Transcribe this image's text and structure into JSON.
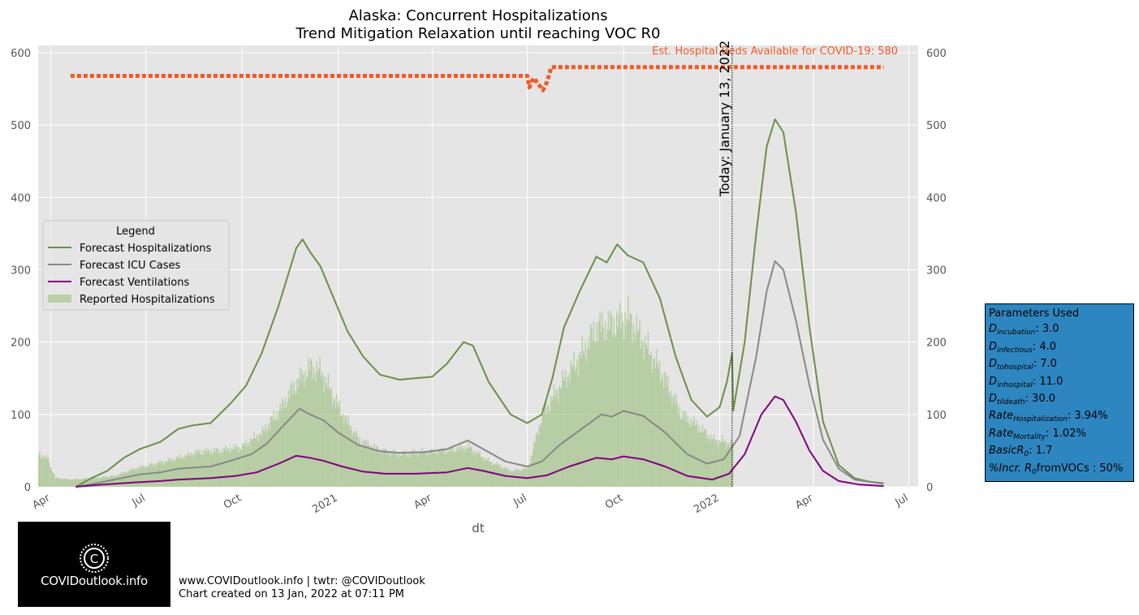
{
  "title_line1": "Alaska: Concurrent Hospitalizations",
  "title_line2": "Trend Mitigation Relaxation until reaching VOC R0",
  "chart_data": {
    "type": "line",
    "title": "Alaska: Concurrent Hospitalizations / Trend Mitigation Relaxation until reaching VOC R0",
    "xlabel": "dt",
    "ylabel": "",
    "ylim": [
      0,
      610
    ],
    "xlim": [
      "2020-03-20",
      "2022-07-10"
    ],
    "x_ticks": [
      {
        "date": "2020-04-01",
        "label": "Apr"
      },
      {
        "date": "2020-07-01",
        "label": "Jul"
      },
      {
        "date": "2020-10-01",
        "label": "Oct"
      },
      {
        "date": "2021-01-01",
        "label": "2021"
      },
      {
        "date": "2021-04-01",
        "label": "Apr"
      },
      {
        "date": "2021-07-01",
        "label": "Jul"
      },
      {
        "date": "2021-10-01",
        "label": "Oct"
      },
      {
        "date": "2022-01-01",
        "label": "2022"
      },
      {
        "date": "2022-04-01",
        "label": "Apr"
      },
      {
        "date": "2022-07-01",
        "label": "Jul"
      }
    ],
    "y_ticks": [
      0,
      100,
      200,
      300,
      400,
      500,
      600
    ],
    "grid": true,
    "legend_title": "Legend",
    "legend_position": "center-left",
    "series": [
      {
        "name": "Forecast Hospitalizations",
        "type": "line",
        "color": "#6a8f4a",
        "points": [
          [
            "2020-04-25",
            0
          ],
          [
            "2020-05-10",
            12
          ],
          [
            "2020-05-25",
            22
          ],
          [
            "2020-06-10",
            40
          ],
          [
            "2020-06-25",
            52
          ],
          [
            "2020-07-15",
            62
          ],
          [
            "2020-08-01",
            80
          ],
          [
            "2020-08-15",
            85
          ],
          [
            "2020-09-01",
            88
          ],
          [
            "2020-09-20",
            115
          ],
          [
            "2020-10-05",
            140
          ],
          [
            "2020-10-20",
            185
          ],
          [
            "2020-11-05",
            250
          ],
          [
            "2020-11-22",
            330
          ],
          [
            "2020-11-28",
            342
          ],
          [
            "2020-12-05",
            325
          ],
          [
            "2020-12-15",
            305
          ],
          [
            "2020-12-28",
            260
          ],
          [
            "2021-01-10",
            215
          ],
          [
            "2021-01-25",
            180
          ],
          [
            "2021-02-10",
            155
          ],
          [
            "2021-03-01",
            148
          ],
          [
            "2021-03-15",
            150
          ],
          [
            "2021-04-01",
            152
          ],
          [
            "2021-04-15",
            170
          ],
          [
            "2021-05-01",
            200
          ],
          [
            "2021-05-10",
            195
          ],
          [
            "2021-05-25",
            145
          ],
          [
            "2021-06-15",
            100
          ],
          [
            "2021-07-01",
            88
          ],
          [
            "2021-07-15",
            100
          ],
          [
            "2021-07-25",
            150
          ],
          [
            "2021-08-05",
            220
          ],
          [
            "2021-08-20",
            270
          ],
          [
            "2021-09-05",
            318
          ],
          [
            "2021-09-15",
            310
          ],
          [
            "2021-09-25",
            335
          ],
          [
            "2021-10-05",
            320
          ],
          [
            "2021-10-20",
            310
          ],
          [
            "2021-11-05",
            260
          ],
          [
            "2021-11-20",
            180
          ],
          [
            "2021-12-05",
            120
          ],
          [
            "2021-12-20",
            97
          ],
          [
            "2022-01-01",
            110
          ],
          [
            "2022-01-08",
            145
          ],
          [
            "2022-01-13",
            185
          ],
          [
            "2022-01-14",
            105
          ],
          [
            "2022-01-25",
            200
          ],
          [
            "2022-02-05",
            350
          ],
          [
            "2022-02-15",
            470
          ],
          [
            "2022-02-23",
            508
          ],
          [
            "2022-03-03",
            490
          ],
          [
            "2022-03-15",
            380
          ],
          [
            "2022-03-28",
            220
          ],
          [
            "2022-04-10",
            90
          ],
          [
            "2022-04-25",
            30
          ],
          [
            "2022-05-10",
            12
          ],
          [
            "2022-05-25",
            7
          ],
          [
            "2022-06-07",
            5
          ]
        ]
      },
      {
        "name": "Forecast ICU Cases",
        "type": "line",
        "color": "#888888",
        "points": [
          [
            "2020-04-25",
            0
          ],
          [
            "2020-05-15",
            5
          ],
          [
            "2020-06-01",
            10
          ],
          [
            "2020-06-25",
            17
          ],
          [
            "2020-07-15",
            20
          ],
          [
            "2020-08-01",
            25
          ],
          [
            "2020-09-01",
            28
          ],
          [
            "2020-09-20",
            36
          ],
          [
            "2020-10-10",
            45
          ],
          [
            "2020-10-25",
            60
          ],
          [
            "2020-11-10",
            85
          ],
          [
            "2020-11-25",
            108
          ],
          [
            "2020-12-05",
            100
          ],
          [
            "2020-12-18",
            92
          ],
          [
            "2021-01-01",
            75
          ],
          [
            "2021-01-20",
            58
          ],
          [
            "2021-02-10",
            49
          ],
          [
            "2021-03-01",
            47
          ],
          [
            "2021-03-25",
            48
          ],
          [
            "2021-04-15",
            52
          ],
          [
            "2021-05-05",
            64
          ],
          [
            "2021-05-20",
            52
          ],
          [
            "2021-06-10",
            35
          ],
          [
            "2021-07-01",
            28
          ],
          [
            "2021-07-15",
            35
          ],
          [
            "2021-08-01",
            58
          ],
          [
            "2021-08-20",
            78
          ],
          [
            "2021-09-10",
            100
          ],
          [
            "2021-09-20",
            97
          ],
          [
            "2021-10-01",
            105
          ],
          [
            "2021-10-20",
            98
          ],
          [
            "2021-11-10",
            75
          ],
          [
            "2021-12-01",
            45
          ],
          [
            "2021-12-20",
            32
          ],
          [
            "2022-01-05",
            38
          ],
          [
            "2022-01-20",
            70
          ],
          [
            "2022-02-05",
            180
          ],
          [
            "2022-02-15",
            270
          ],
          [
            "2022-02-23",
            312
          ],
          [
            "2022-03-03",
            300
          ],
          [
            "2022-03-15",
            230
          ],
          [
            "2022-03-28",
            140
          ],
          [
            "2022-04-10",
            65
          ],
          [
            "2022-04-25",
            25
          ],
          [
            "2022-05-10",
            10
          ],
          [
            "2022-06-07",
            4
          ]
        ]
      },
      {
        "name": "Forecast Ventilations",
        "type": "line",
        "color": "#800080",
        "points": [
          [
            "2020-04-25",
            0
          ],
          [
            "2020-05-20",
            3
          ],
          [
            "2020-06-20",
            6
          ],
          [
            "2020-07-15",
            8
          ],
          [
            "2020-08-01",
            10
          ],
          [
            "2020-09-01",
            12
          ],
          [
            "2020-09-25",
            15
          ],
          [
            "2020-10-15",
            20
          ],
          [
            "2020-11-05",
            32
          ],
          [
            "2020-11-22",
            43
          ],
          [
            "2020-12-05",
            40
          ],
          [
            "2020-12-18",
            36
          ],
          [
            "2021-01-05",
            28
          ],
          [
            "2021-01-25",
            21
          ],
          [
            "2021-02-15",
            18
          ],
          [
            "2021-03-15",
            18
          ],
          [
            "2021-04-15",
            20
          ],
          [
            "2021-05-05",
            26
          ],
          [
            "2021-05-20",
            22
          ],
          [
            "2021-06-10",
            15
          ],
          [
            "2021-07-01",
            12
          ],
          [
            "2021-07-20",
            16
          ],
          [
            "2021-08-10",
            28
          ],
          [
            "2021-09-05",
            40
          ],
          [
            "2021-09-20",
            38
          ],
          [
            "2021-10-01",
            42
          ],
          [
            "2021-10-20",
            38
          ],
          [
            "2021-11-10",
            28
          ],
          [
            "2021-12-01",
            15
          ],
          [
            "2021-12-25",
            10
          ],
          [
            "2022-01-10",
            18
          ],
          [
            "2022-01-25",
            45
          ],
          [
            "2022-02-10",
            100
          ],
          [
            "2022-02-23",
            125
          ],
          [
            "2022-03-03",
            120
          ],
          [
            "2022-03-15",
            90
          ],
          [
            "2022-03-28",
            50
          ],
          [
            "2022-04-10",
            22
          ],
          [
            "2022-04-25",
            8
          ],
          [
            "2022-05-15",
            3
          ],
          [
            "2022-06-07",
            1
          ]
        ]
      },
      {
        "name": "Reported Hospitalizations",
        "type": "bar",
        "color": "#a5c388",
        "points": [
          [
            "2020-03-20",
            45
          ],
          [
            "2020-03-28",
            40
          ],
          [
            "2020-04-05",
            12
          ],
          [
            "2020-04-20",
            10
          ],
          [
            "2020-05-10",
            12
          ],
          [
            "2020-06-01",
            15
          ],
          [
            "2020-06-20",
            25
          ],
          [
            "2020-07-10",
            32
          ],
          [
            "2020-08-01",
            40
          ],
          [
            "2020-08-20",
            48
          ],
          [
            "2020-09-10",
            50
          ],
          [
            "2020-09-30",
            55
          ],
          [
            "2020-10-20",
            75
          ],
          [
            "2020-11-05",
            105
          ],
          [
            "2020-11-20",
            140
          ],
          [
            "2020-12-05",
            165
          ],
          [
            "2020-12-15",
            160
          ],
          [
            "2020-12-25",
            130
          ],
          [
            "2021-01-05",
            100
          ],
          [
            "2021-01-20",
            65
          ],
          [
            "2021-02-10",
            50
          ],
          [
            "2021-03-01",
            45
          ],
          [
            "2021-03-25",
            48
          ],
          [
            "2021-04-15",
            50
          ],
          [
            "2021-05-05",
            55
          ],
          [
            "2021-05-25",
            35
          ],
          [
            "2021-06-15",
            22
          ],
          [
            "2021-07-01",
            25
          ],
          [
            "2021-07-15",
            100
          ],
          [
            "2021-08-01",
            140
          ],
          [
            "2021-08-20",
            180
          ],
          [
            "2021-09-05",
            220
          ],
          [
            "2021-09-20",
            225
          ],
          [
            "2021-10-05",
            235
          ],
          [
            "2021-10-20",
            200
          ],
          [
            "2021-11-05",
            160
          ],
          [
            "2021-11-25",
            100
          ],
          [
            "2021-12-10",
            85
          ],
          [
            "2021-12-25",
            65
          ],
          [
            "2022-01-13",
            60
          ]
        ]
      },
      {
        "name": "Est. Hospital Beds Available for COVID-19",
        "type": "line-dotted",
        "color": "#f05a28",
        "points": [
          [
            "2020-04-20",
            568
          ],
          [
            "2021-07-01",
            568
          ],
          [
            "2021-07-03",
            552
          ],
          [
            "2021-07-07",
            565
          ],
          [
            "2021-07-11",
            558
          ],
          [
            "2021-07-16",
            548
          ],
          [
            "2021-07-20",
            560
          ],
          [
            "2021-07-24",
            580
          ],
          [
            "2022-06-07",
            580
          ]
        ]
      }
    ],
    "annotations": [
      {
        "text": "Est. Hospital Beds Available for COVID-19: 580",
        "color": "#f05a28",
        "y": 580,
        "anchor": "top-right"
      },
      {
        "text": "Today: January 13, 2022",
        "x": "2022-01-13",
        "rotation": "vertical"
      }
    ]
  },
  "parameters": {
    "title": "Parameters Used",
    "rows": [
      {
        "sym": "D",
        "sub": "incubation",
        "val": ": 3.0"
      },
      {
        "sym": "D",
        "sub": "infectious",
        "val": ": 4.0"
      },
      {
        "sym": "D",
        "sub": "tohospital",
        "val": ": 7.0"
      },
      {
        "sym": "D",
        "sub": "inhospital",
        "val": ": 11.0"
      },
      {
        "sym": "D",
        "sub": "tildeath",
        "val": ": 30.0"
      },
      {
        "sym": "Rate",
        "sub": "Hospitalization",
        "val": ": 3.94%"
      },
      {
        "sym": "Rate",
        "sub": "Mortality",
        "val": ": 1.02%"
      },
      {
        "sym": "BasicR",
        "sub": "0",
        "val": ": 1.7"
      },
      {
        "sym": "%Incr. R",
        "sub": "0",
        "val": "fromVOCs : 50%"
      }
    ]
  },
  "logo_text": "COVIDoutlook.info",
  "credits_line1": "www.COVIDoutlook.info | twtr: @COVIDoutlook",
  "credits_line2": "Chart created on 13 Jan, 2022 at 07:11 PM"
}
